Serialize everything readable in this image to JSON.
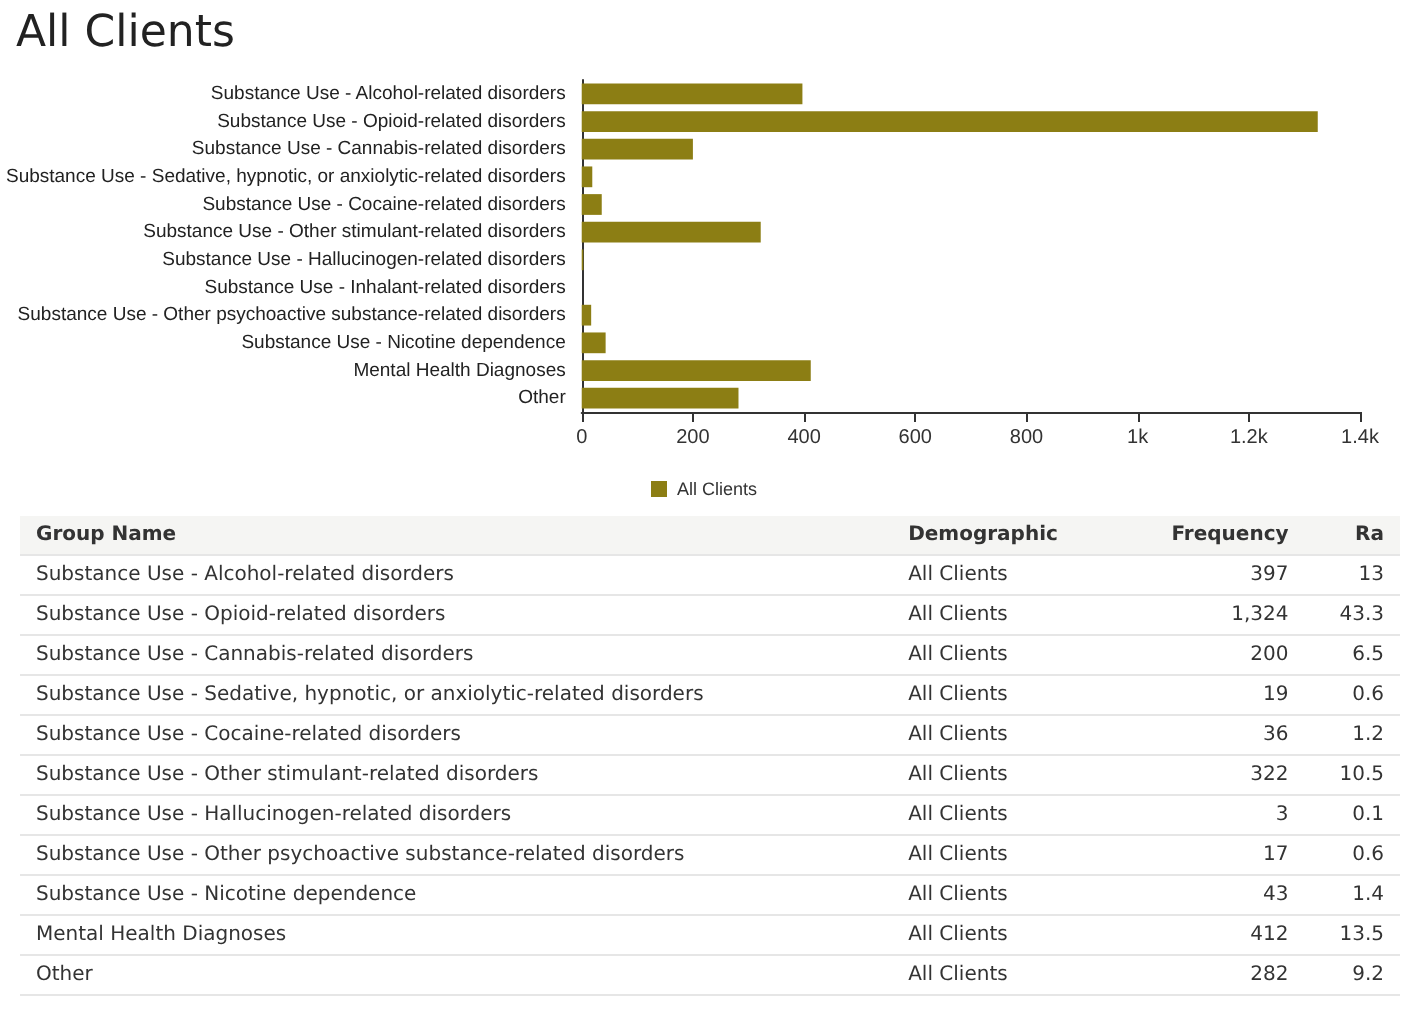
{
  "chart_data": [
    {
      "type": "bar",
      "orientation": "horizontal",
      "title": "All Clients",
      "categories": [
        "Substance Use - Alcohol-related disorders",
        "Substance Use - Opioid-related disorders",
        "Substance Use - Cannabis-related disorders",
        "Substance Use - Sedative, hypnotic, or anxiolytic-related disorders",
        "Substance Use - Cocaine-related disorders",
        "Substance Use - Other stimulant-related disorders",
        "Substance Use - Hallucinogen-related disorders",
        "Substance Use - Inhalant-related disorders",
        "Substance Use - Other psychoactive substance-related disorders",
        "Substance Use - Nicotine dependence",
        "Mental Health Diagnoses",
        "Other"
      ],
      "series": [
        {
          "name": "All Clients",
          "color": "#8c7e14",
          "values": [
            397,
            1324,
            200,
            19,
            36,
            322,
            3,
            0,
            17,
            43,
            412,
            282
          ]
        }
      ],
      "xlim": [
        0,
        1400
      ],
      "xticks": [
        0,
        200,
        400,
        600,
        800,
        {
          "value": 1000,
          "label": "1k"
        },
        {
          "value": 1200,
          "label": "1.2k"
        },
        {
          "value": 1400,
          "label": "1.4k"
        }
      ],
      "legend": "bottom",
      "grid": false
    },
    {
      "type": "other",
      "annotations": [
        "Group Name",
        "Demographic",
        "Frequency",
        "Ra",
        "Substance Use - Alcohol-related disorders",
        "All Clients",
        "397",
        "13",
        "Substance Use - Opioid-related disorders",
        "All Clients",
        "1,324",
        "43.3",
        "Substance Use - Cannabis-related disorders",
        "All Clients",
        "200",
        "6.5",
        "Substance Use - Sedative, hypnotic, or anxiolytic-related disorders",
        "All Clients",
        "19",
        "0.6",
        "Substance Use - Cocaine-related disorders",
        "All Clients",
        "36",
        "1.2",
        "Substance Use - Other stimulant-related disorders",
        "All Clients",
        "322",
        "10.5",
        "Substance Use - Hallucinogen-related disorders",
        "All Clients",
        "3",
        "0.1",
        "Substance Use - Other psychoactive substance-related disorders",
        "All Clients",
        "17",
        "0.6",
        "Substance Use - Nicotine dependence",
        "All Clients",
        "43",
        "1.4",
        "Mental Health Diagnoses",
        "All Clients",
        "412",
        "13.5",
        "Other",
        "All Clients",
        "282",
        "9.2"
      ]
    }
  ]
}
